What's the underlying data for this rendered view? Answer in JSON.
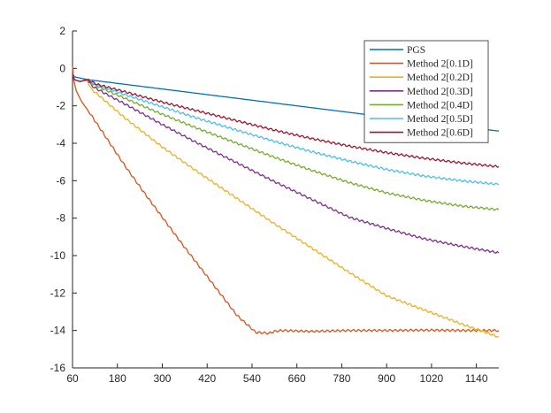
{
  "chart_data": {
    "type": "line",
    "title": "",
    "xlabel": "",
    "ylabel": "",
    "xlim": [
      60,
      1200
    ],
    "ylim": [
      -16,
      2
    ],
    "xticks": [
      60,
      180,
      300,
      420,
      540,
      660,
      780,
      900,
      1020,
      1140
    ],
    "yticks": [
      2,
      0,
      -2,
      -4,
      -6,
      -8,
      -10,
      -12,
      -14,
      -16
    ],
    "xtick_labels": [
      "60",
      "180",
      "300",
      "420",
      "540",
      "660",
      "780",
      "900",
      "1020",
      "1140"
    ],
    "ytick_labels": [
      "2",
      "0",
      "-2",
      "-4",
      "-6",
      "-8",
      "-10",
      "-12",
      "-14",
      "-16"
    ],
    "grid": false,
    "legend_position": "top-right",
    "series": [
      {
        "name": "PGS",
        "color": "#0072BD",
        "x": [
          60,
          65,
          100,
          200,
          300,
          400,
          500,
          600,
          700,
          800,
          900,
          1000,
          1100,
          1200
        ],
        "y": [
          -0.3,
          -0.45,
          -0.6,
          -0.85,
          -1.1,
          -1.35,
          -1.6,
          -1.85,
          -2.1,
          -2.35,
          -2.6,
          -2.85,
          -3.1,
          -3.35
        ]
      },
      {
        "name": "Method 2[0.1D]",
        "color": "#D95319",
        "x": [
          60,
          63,
          70,
          85,
          100,
          150,
          200,
          250,
          300,
          350,
          400,
          450,
          500,
          550,
          585,
          600,
          620,
          700,
          800,
          900,
          1000,
          1100,
          1200
        ],
        "y": [
          0.1,
          -0.6,
          -1.2,
          -1.8,
          -2.2,
          -3.7,
          -5.2,
          -6.6,
          -7.95,
          -9.3,
          -10.6,
          -11.9,
          -13.2,
          -14.1,
          -14.15,
          -14.05,
          -14.0,
          -14.05,
          -14.0,
          -14.0,
          -13.98,
          -14.0,
          -14.0
        ]
      },
      {
        "name": "Method 2[0.2D]",
        "color": "#EDB120",
        "x": [
          60,
          65,
          80,
          100,
          110,
          125,
          200,
          300,
          400,
          500,
          600,
          700,
          800,
          900,
          1000,
          1100,
          1200
        ],
        "y": [
          -0.3,
          -0.6,
          -0.7,
          -0.65,
          -1.1,
          -1.35,
          -2.65,
          -4.2,
          -5.6,
          -6.95,
          -8.3,
          -9.6,
          -10.9,
          -12.15,
          -12.9,
          -13.65,
          -14.35
        ]
      },
      {
        "name": "Method 2[0.3D]",
        "color": "#7E2F8E",
        "x": [
          60,
          65,
          80,
          100,
          110,
          125,
          200,
          300,
          400,
          500,
          600,
          700,
          800,
          900,
          1000,
          1100,
          1200
        ],
        "y": [
          -0.3,
          -0.6,
          -0.7,
          -0.6,
          -0.9,
          -1.1,
          -1.9,
          -3.0,
          -4.05,
          -5.05,
          -6.05,
          -7.0,
          -7.95,
          -8.55,
          -9.1,
          -9.5,
          -9.85
        ]
      },
      {
        "name": "Method 2[0.4D]",
        "color": "#77AC30",
        "x": [
          60,
          65,
          80,
          100,
          110,
          125,
          200,
          300,
          400,
          500,
          600,
          700,
          800,
          900,
          1000,
          1100,
          1200
        ],
        "y": [
          -0.3,
          -0.6,
          -0.7,
          -0.6,
          -0.8,
          -0.95,
          -1.6,
          -2.45,
          -3.25,
          -4.0,
          -4.75,
          -5.45,
          -6.1,
          -6.65,
          -7.05,
          -7.35,
          -7.55
        ]
      },
      {
        "name": "Method 2[0.5D]",
        "color": "#4DBEEE",
        "x": [
          60,
          65,
          80,
          100,
          110,
          125,
          200,
          300,
          400,
          500,
          600,
          700,
          800,
          900,
          1000,
          1100,
          1200
        ],
        "y": [
          -0.3,
          -0.6,
          -0.7,
          -0.6,
          -0.75,
          -0.9,
          -1.4,
          -2.05,
          -2.7,
          -3.3,
          -3.9,
          -4.45,
          -4.95,
          -5.4,
          -5.75,
          -6.0,
          -6.2
        ]
      },
      {
        "name": "Method 2[0.6D]",
        "color": "#A2142F",
        "x": [
          60,
          65,
          80,
          100,
          110,
          125,
          200,
          300,
          400,
          500,
          600,
          700,
          800,
          900,
          1000,
          1100,
          1200
        ],
        "y": [
          -0.3,
          -0.6,
          -0.7,
          -0.6,
          -0.7,
          -0.85,
          -1.25,
          -1.8,
          -2.3,
          -2.8,
          -3.3,
          -3.75,
          -4.15,
          -4.5,
          -4.8,
          -5.05,
          -5.25
        ]
      }
    ]
  }
}
